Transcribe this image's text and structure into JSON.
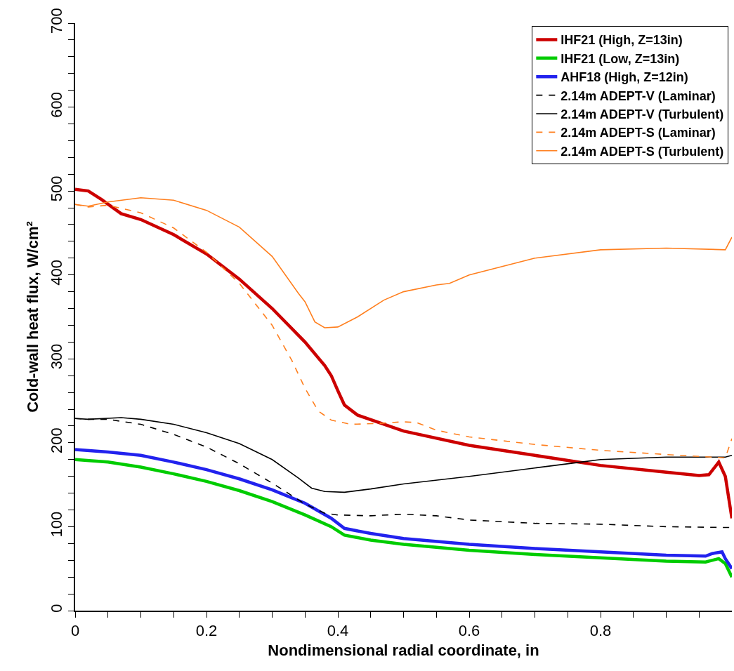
{
  "chart_data": {
    "type": "line",
    "xlabel": "Nondimensional radial coordinate, in",
    "ylabel": "Cold-wall heat flux, W/cm²",
    "xlim": [
      0,
      1
    ],
    "ylim": [
      0,
      700
    ],
    "xticks": [
      0,
      {
        "value": 0.05,
        "label": null
      },
      {
        "value": 0.1,
        "label": null
      },
      {
        "value": 0.15,
        "label": null
      },
      0.2,
      {
        "value": 0.25,
        "label": null
      },
      {
        "value": 0.3,
        "label": null
      },
      {
        "value": 0.35,
        "label": null
      },
      0.4,
      {
        "value": 0.45,
        "label": null
      },
      {
        "value": 0.5,
        "label": null
      },
      {
        "value": 0.55,
        "label": null
      },
      0.6,
      {
        "value": 0.65,
        "label": null
      },
      {
        "value": 0.7,
        "label": null
      },
      {
        "value": 0.75,
        "label": null
      },
      0.8,
      {
        "value": 0.85,
        "label": null
      },
      {
        "value": 0.9,
        "label": null
      },
      {
        "value": 0.95,
        "label": null
      }
    ],
    "yticks": [
      0,
      {
        "value": 20,
        "label": null
      },
      {
        "value": 40,
        "label": null
      },
      {
        "value": 60,
        "label": null
      },
      {
        "value": 80,
        "label": null
      },
      100,
      {
        "value": 120,
        "label": null
      },
      {
        "value": 140,
        "label": null
      },
      {
        "value": 160,
        "label": null
      },
      {
        "value": 180,
        "label": null
      },
      200,
      {
        "value": 220,
        "label": null
      },
      {
        "value": 240,
        "label": null
      },
      {
        "value": 260,
        "label": null
      },
      {
        "value": 280,
        "label": null
      },
      300,
      {
        "value": 320,
        "label": null
      },
      {
        "value": 340,
        "label": null
      },
      {
        "value": 360,
        "label": null
      },
      {
        "value": 380,
        "label": null
      },
      400,
      {
        "value": 420,
        "label": null
      },
      {
        "value": 440,
        "label": null
      },
      {
        "value": 460,
        "label": null
      },
      {
        "value": 480,
        "label": null
      },
      500,
      {
        "value": 520,
        "label": null
      },
      {
        "value": 540,
        "label": null
      },
      {
        "value": 560,
        "label": null
      },
      {
        "value": 580,
        "label": null
      },
      600,
      {
        "value": 620,
        "label": null
      },
      {
        "value": 640,
        "label": null
      },
      {
        "value": 660,
        "label": null
      },
      {
        "value": 680,
        "label": null
      },
      700
    ],
    "grid": false,
    "legend": "top right",
    "marker": "none",
    "series": [
      {
        "name": "IHF21 (High, Z=13in)",
        "color": "#cc0000",
        "line_style": "solid",
        "x": [
          0,
          0.02,
          0.04,
          0.07,
          0.1,
          0.15,
          0.2,
          0.25,
          0.3,
          0.35,
          0.38,
          0.39,
          0.4,
          0.41,
          0.43,
          0.5,
          0.6,
          0.7,
          0.8,
          0.9,
          0.95,
          0.965,
          0.975,
          0.98,
          0.99,
          1.0
        ],
        "values": [
          502,
          500,
          490,
          473,
          466,
          448,
          425,
          395,
          360,
          320,
          292,
          280,
          262,
          245,
          233,
          214,
          197,
          185,
          173,
          165,
          161,
          162,
          172,
          177,
          160,
          110
        ]
      },
      {
        "name": "IHF21 (Low, Z=13in)",
        "color": "#00cc00",
        "line_style": "solid",
        "x": [
          0,
          0.05,
          0.1,
          0.15,
          0.2,
          0.25,
          0.3,
          0.35,
          0.39,
          0.41,
          0.45,
          0.5,
          0.6,
          0.7,
          0.8,
          0.9,
          0.96,
          0.98,
          0.99,
          1.0
        ],
        "values": [
          180,
          177,
          171,
          163,
          154,
          143,
          130,
          114,
          100,
          90,
          84,
          79,
          72,
          67,
          63,
          59,
          58,
          62,
          56,
          40
        ]
      },
      {
        "name": "AHF18 (High, Z=12in)",
        "color": "#2222ee",
        "line_style": "solid",
        "x": [
          0,
          0.05,
          0.1,
          0.15,
          0.2,
          0.25,
          0.3,
          0.35,
          0.39,
          0.41,
          0.45,
          0.5,
          0.6,
          0.7,
          0.8,
          0.9,
          0.96,
          0.97,
          0.985,
          0.99,
          1.0
        ],
        "values": [
          192,
          189,
          185,
          177,
          168,
          157,
          144,
          128,
          110,
          98,
          92,
          86,
          79,
          74,
          70,
          66,
          65,
          68,
          70,
          62,
          50
        ]
      },
      {
        "name": "2.14m ADEPT-V (Laminar)",
        "color": "#000000",
        "line_style": "dashed",
        "x": [
          0,
          0.02,
          0.05,
          0.1,
          0.15,
          0.2,
          0.25,
          0.3,
          0.35,
          0.38,
          0.4,
          0.45,
          0.5,
          0.55,
          0.6,
          0.7,
          0.8,
          0.9,
          1.0
        ],
        "values": [
          229,
          228,
          228,
          222,
          210,
          195,
          175,
          152,
          127,
          116,
          114,
          113,
          115,
          113,
          108,
          104,
          103,
          100,
          99
        ]
      },
      {
        "name": "2.14m ADEPT-V (Turbulent)",
        "color": "#000000",
        "line_style": "solid",
        "x": [
          0,
          0.02,
          0.07,
          0.1,
          0.15,
          0.2,
          0.25,
          0.3,
          0.34,
          0.36,
          0.38,
          0.41,
          0.45,
          0.5,
          0.6,
          0.7,
          0.77,
          0.8,
          0.9,
          0.99,
          1.0
        ],
        "values": [
          229,
          228,
          230,
          228,
          222,
          212,
          199,
          180,
          158,
          146,
          142,
          141,
          145,
          151,
          160,
          170,
          177,
          180,
          183,
          183,
          185
        ]
      },
      {
        "name": "2.14m ADEPT-S (Laminar)",
        "color": "#ff7f1e",
        "line_style": "dashed",
        "x": [
          0,
          0.02,
          0.05,
          0.1,
          0.15,
          0.2,
          0.25,
          0.3,
          0.33,
          0.35,
          0.37,
          0.39,
          0.42,
          0.46,
          0.5,
          0.52,
          0.55,
          0.6,
          0.7,
          0.8,
          0.9,
          0.99,
          1.0
        ],
        "values": [
          484,
          481,
          483,
          474,
          456,
          427,
          390,
          340,
          298,
          265,
          238,
          227,
          222,
          223,
          225,
          224,
          215,
          207,
          198,
          191,
          186,
          182,
          205
        ]
      },
      {
        "name": "2.14m ADEPT-S (Turbulent)",
        "color": "#ff7f1e",
        "line_style": "solid",
        "x": [
          0,
          0.02,
          0.05,
          0.1,
          0.15,
          0.2,
          0.25,
          0.3,
          0.34,
          0.35,
          0.365,
          0.38,
          0.4,
          0.43,
          0.47,
          0.5,
          0.55,
          0.57,
          0.6,
          0.7,
          0.8,
          0.9,
          0.99,
          1.0
        ],
        "values": [
          484,
          482,
          487,
          492,
          489,
          477,
          457,
          422,
          378,
          368,
          344,
          337,
          338,
          350,
          370,
          380,
          388,
          390,
          400,
          420,
          430,
          432,
          430,
          445
        ]
      }
    ]
  }
}
